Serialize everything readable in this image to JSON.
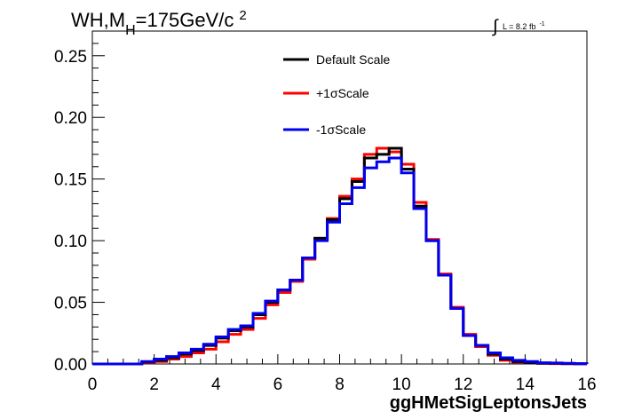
{
  "chart_data": {
    "type": "line",
    "title": {
      "main": "WH,M",
      "sub": "H",
      "rest": "=175GeV/c",
      "sup": "2"
    },
    "lumi": {
      "symbol": "∫",
      "text": "L = 8.2 fb",
      "sup": "-1"
    },
    "xlabel": "ggHMetSigLeptonsJets",
    "ylabel": "",
    "xlim": [
      0,
      16
    ],
    "ylim": [
      0,
      0.27
    ],
    "x_ticks": [
      "0",
      "2",
      "4",
      "6",
      "8",
      "10",
      "12",
      "14",
      "16"
    ],
    "y_ticks": [
      "0.00",
      "0.05",
      "0.10",
      "0.15",
      "0.20",
      "0.25"
    ],
    "bin_edges": [
      0,
      0.4,
      0.8,
      1.2,
      1.6,
      2.0,
      2.4,
      2.8,
      3.2,
      3.6,
      4.0,
      4.4,
      4.8,
      5.2,
      5.6,
      6.0,
      6.4,
      6.8,
      7.2,
      7.6,
      8.0,
      8.4,
      8.8,
      9.2,
      9.6,
      10.0,
      10.4,
      10.8,
      11.2,
      11.6,
      12.0,
      12.4,
      12.8,
      13.2,
      13.6,
      14.0,
      14.4,
      14.8,
      15.2,
      15.6,
      16.0
    ],
    "legend_position": "top-center",
    "series": [
      {
        "name": "Default Scale",
        "color": "#000000",
        "values": [
          0,
          0,
          0,
          0,
          0.0015,
          0.003,
          0.005,
          0.008,
          0.011,
          0.015,
          0.021,
          0.027,
          0.03,
          0.04,
          0.05,
          0.06,
          0.068,
          0.086,
          0.102,
          0.117,
          0.134,
          0.148,
          0.167,
          0.17,
          0.175,
          0.158,
          0.128,
          0.1,
          0.072,
          0.045,
          0.023,
          0.015,
          0.008,
          0.004,
          0.002,
          0.001,
          0.0005,
          0.0005,
          0.0003,
          0.0002
        ]
      },
      {
        "name": "+1σScale",
        "color": "#ff0000",
        "values": [
          0,
          0,
          0,
          0,
          0.001,
          0.002,
          0.004,
          0.006,
          0.009,
          0.012,
          0.018,
          0.024,
          0.028,
          0.037,
          0.048,
          0.058,
          0.067,
          0.085,
          0.102,
          0.118,
          0.136,
          0.15,
          0.17,
          0.175,
          0.172,
          0.162,
          0.131,
          0.101,
          0.073,
          0.046,
          0.024,
          0.014,
          0.007,
          0.003,
          0.0015,
          0.001,
          0.0005,
          0.0003,
          0.0002,
          0.0001
        ]
      },
      {
        "name": "-1σScale",
        "color": "#0000ee",
        "values": [
          0,
          0,
          0,
          0,
          0.002,
          0.004,
          0.006,
          0.009,
          0.012,
          0.016,
          0.022,
          0.028,
          0.031,
          0.041,
          0.051,
          0.06,
          0.068,
          0.086,
          0.1,
          0.115,
          0.13,
          0.143,
          0.159,
          0.164,
          0.167,
          0.155,
          0.126,
          0.1,
          0.072,
          0.045,
          0.023,
          0.015,
          0.009,
          0.005,
          0.003,
          0.002,
          0.001,
          0.0008,
          0.0005,
          0.0003
        ]
      }
    ]
  }
}
